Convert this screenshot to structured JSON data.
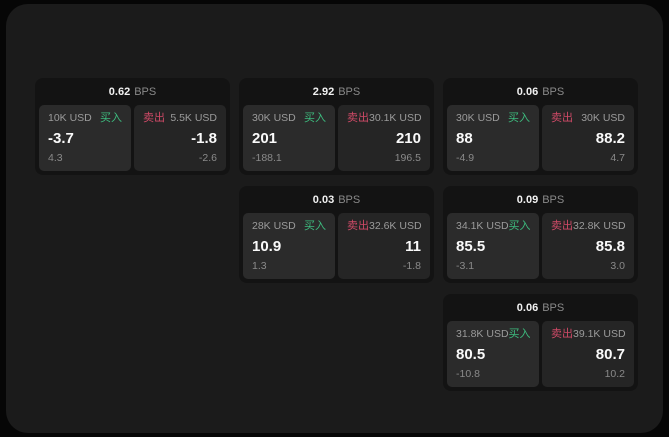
{
  "labels": {
    "bps_unit": "BPS",
    "buy": "买入",
    "sell": "卖出"
  },
  "colors": {
    "buy": "#3dbb7e",
    "sell": "#cf4a67",
    "panel_background": "#1b1b1b",
    "card_background": "#131313",
    "tile_background": "#2b2b2b"
  },
  "cards": [
    {
      "bps": "0.62",
      "col": 0,
      "row": 0,
      "buy": {
        "amount": "10K USD",
        "price": "-3.7",
        "delta": "4.3"
      },
      "sell": {
        "amount": "5.5K USD",
        "price": "-1.8",
        "delta": "-2.6"
      }
    },
    {
      "bps": "2.92",
      "col": 1,
      "row": 0,
      "buy": {
        "amount": "30K USD",
        "price": "201",
        "delta": "-188.1"
      },
      "sell": {
        "amount": "30.1K USD",
        "price": "210",
        "delta": "196.5"
      }
    },
    {
      "bps": "0.06",
      "col": 2,
      "row": 0,
      "buy": {
        "amount": "30K USD",
        "price": "88",
        "delta": "-4.9"
      },
      "sell": {
        "amount": "30K USD",
        "price": "88.2",
        "delta": "4.7"
      }
    },
    {
      "bps": "0.03",
      "col": 1,
      "row": 1,
      "buy": {
        "amount": "28K USD",
        "price": "10.9",
        "delta": "1.3"
      },
      "sell": {
        "amount": "32.6K USD",
        "price": "11",
        "delta": "-1.8"
      }
    },
    {
      "bps": "0.09",
      "col": 2,
      "row": 1,
      "buy": {
        "amount": "34.1K USD",
        "price": "85.5",
        "delta": "-3.1"
      },
      "sell": {
        "amount": "32.8K USD",
        "price": "85.8",
        "delta": "3.0"
      }
    },
    {
      "bps": "0.06",
      "col": 2,
      "row": 2,
      "buy": {
        "amount": "31.8K USD",
        "price": "80.5",
        "delta": "-10.8"
      },
      "sell": {
        "amount": "39.1K USD",
        "price": "80.7",
        "delta": "10.2"
      }
    }
  ]
}
